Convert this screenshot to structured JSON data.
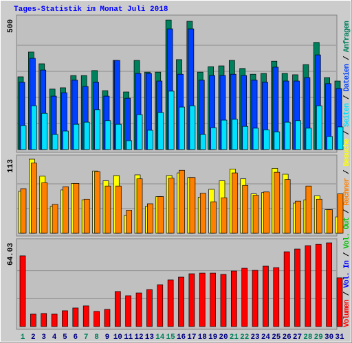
{
  "chart_data": [
    {
      "type": "bar",
      "title": "Tages-Statistik im Monat Juli 2018",
      "legend_separator": "/",
      "ylim": [
        0,
        500
      ],
      "yticks": [
        500
      ],
      "grid": true,
      "series": [
        {
          "name": "Anfragen",
          "color": "#00805c",
          "values": [
            279,
            374,
            329,
            232,
            237,
            284,
            284,
            303,
            226,
            342,
            221,
            342,
            297,
            297,
            497,
            345,
            492,
            297,
            318,
            321,
            342,
            311,
            289,
            292,
            339,
            292,
            287,
            326,
            411,
            276,
            263
          ]
        },
        {
          "name": "Dateien",
          "color": "#0040ff",
          "values": [
            258,
            350,
            305,
            205,
            218,
            266,
            242,
            258,
            205,
            342,
            197,
            292,
            292,
            263,
            463,
            289,
            463,
            266,
            284,
            284,
            289,
            284,
            266,
            258,
            316,
            263,
            263,
            276,
            363,
            253,
            234
          ]
        },
        {
          "name": "Seiten",
          "color": "#00e0ff",
          "values": [
            92,
            168,
            139,
            58,
            71,
            97,
            105,
            153,
            111,
            97,
            34,
            134,
            74,
            142,
            224,
            163,
            168,
            58,
            84,
            113,
            116,
            89,
            82,
            76,
            68,
            105,
            111,
            82,
            168,
            50,
            87
          ]
        }
      ]
    },
    {
      "type": "bar",
      "ylim": [
        0,
        113
      ],
      "yticks": [
        113
      ],
      "grid": true,
      "series": [
        {
          "name": "Besuche",
          "color": "#ffff00",
          "values": [
            64,
            113,
            87,
            41,
            66,
            76,
            51,
            95,
            80,
            88,
            27,
            89,
            41,
            56,
            88,
            92,
            85,
            55,
            67,
            80,
            98,
            83,
            60,
            62,
            99,
            90,
            46,
            51,
            57,
            36,
            25
          ]
        },
        {
          "name": "Rechner",
          "color": "#ff8000",
          "values": [
            68,
            107,
            77,
            44,
            71,
            76,
            52,
            94,
            72,
            72,
            35,
            83,
            45,
            56,
            84,
            96,
            85,
            61,
            48,
            54,
            92,
            73,
            58,
            63,
            93,
            82,
            49,
            72,
            52,
            36,
            60
          ]
        }
      ]
    },
    {
      "type": "bar",
      "ylim": [
        0,
        64.03
      ],
      "yticks": [
        64.03
      ],
      "grid": true,
      "categories": [
        "1",
        "2",
        "3",
        "4",
        "5",
        "6",
        "7",
        "8",
        "9",
        "10",
        "11",
        "12",
        "13",
        "14",
        "15",
        "16",
        "17",
        "18",
        "19",
        "20",
        "21",
        "22",
        "23",
        "24",
        "25",
        "26",
        "27",
        "28",
        "29",
        "30",
        "31"
      ],
      "tick_colors": [
        "#00805c",
        "#000080",
        "#000080",
        "#000080",
        "#000080",
        "#000080",
        "#00805c",
        "#00805c",
        "#000080",
        "#000080",
        "#000080",
        "#000080",
        "#000080",
        "#00805c",
        "#00805c",
        "#000080",
        "#000080",
        "#000080",
        "#000080",
        "#000080",
        "#00805c",
        "#00805c",
        "#000080",
        "#000080",
        "#000080",
        "#000080",
        "#000080",
        "#00805c",
        "#00805c",
        "#000080",
        "#000080"
      ],
      "series": [
        {
          "name": "Volumen",
          "color": "#ff0000",
          "values": [
            54.1,
            9.5,
            10.0,
            9.5,
            12.1,
            14.2,
            15.8,
            11.6,
            13.1,
            26.8,
            23.6,
            25.7,
            28.3,
            32.0,
            35.7,
            37.8,
            40.4,
            40.9,
            40.9,
            39.9,
            42.5,
            44.6,
            43.0,
            46.2,
            45.1,
            57.2,
            59.3,
            61.9,
            62.9,
            64.03,
            37.3
          ]
        }
      ],
      "legend_only": [
        {
          "name": "Vol. In",
          "color": "#0000ff"
        },
        {
          "name": "Vol. Out",
          "color": "#00c000"
        }
      ]
    }
  ]
}
